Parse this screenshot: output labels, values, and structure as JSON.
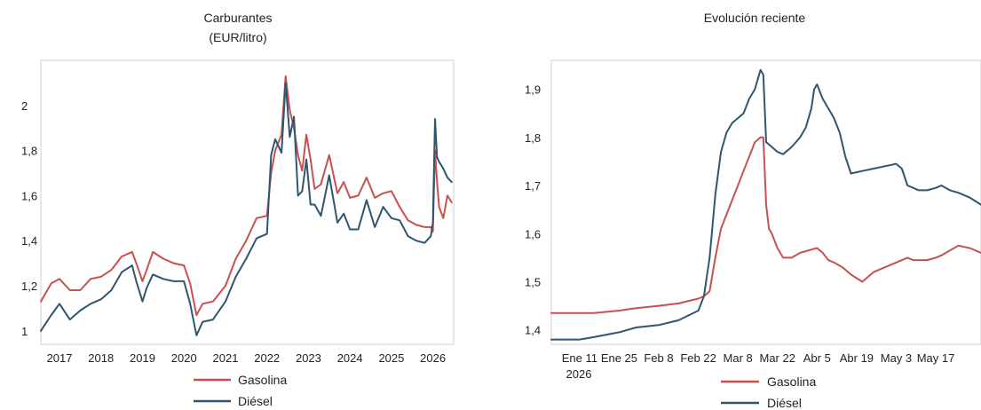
{
  "chart_data": [
    {
      "type": "line",
      "title": "Carburantes",
      "subtitle": "(EUR/litro)",
      "xlabel": "",
      "ylabel": "",
      "x_ticks": [
        "2017",
        "2018",
        "2019",
        "2020",
        "2021",
        "2022",
        "2023",
        "2024",
        "2025",
        "2026"
      ],
      "y_ticks": [
        "1",
        "1,2",
        "1,4",
        "1,6",
        "1,8",
        "2"
      ],
      "xlim": [
        2016.55,
        2026.5
      ],
      "ylim": [
        0.94,
        2.2
      ],
      "grid": false,
      "legend": "bottom",
      "series": [
        {
          "name": "Gasolina",
          "color": "#c8504e",
          "x": [
            2016.55,
            2016.8,
            2017.0,
            2017.25,
            2017.5,
            2017.75,
            2018.0,
            2018.25,
            2018.5,
            2018.75,
            2018.85,
            2019.0,
            2019.1,
            2019.25,
            2019.5,
            2019.75,
            2020.0,
            2020.15,
            2020.3,
            2020.45,
            2020.7,
            2021.0,
            2021.25,
            2021.5,
            2021.75,
            2022.0,
            2022.1,
            2022.2,
            2022.35,
            2022.45,
            2022.55,
            2022.65,
            2022.75,
            2022.85,
            2022.95,
            2023.05,
            2023.15,
            2023.3,
            2023.5,
            2023.7,
            2023.85,
            2024.0,
            2024.2,
            2024.4,
            2024.6,
            2024.8,
            2025.0,
            2025.2,
            2025.4,
            2025.6,
            2025.8,
            2025.95,
            2026.0,
            2026.05,
            2026.1,
            2026.15,
            2026.25,
            2026.35,
            2026.45
          ],
          "values": [
            1.13,
            1.21,
            1.23,
            1.18,
            1.18,
            1.23,
            1.24,
            1.27,
            1.33,
            1.35,
            1.3,
            1.22,
            1.27,
            1.35,
            1.32,
            1.3,
            1.29,
            1.21,
            1.07,
            1.12,
            1.13,
            1.2,
            1.32,
            1.4,
            1.5,
            1.51,
            1.7,
            1.8,
            1.87,
            2.13,
            1.98,
            1.9,
            1.78,
            1.71,
            1.87,
            1.76,
            1.63,
            1.65,
            1.78,
            1.61,
            1.66,
            1.59,
            1.6,
            1.68,
            1.59,
            1.61,
            1.62,
            1.55,
            1.49,
            1.47,
            1.46,
            1.46,
            1.44,
            1.8,
            1.66,
            1.55,
            1.5,
            1.6,
            1.57
          ]
        },
        {
          "name": "Diésel",
          "color": "#2f5670",
          "x": [
            2016.55,
            2016.8,
            2017.0,
            2017.25,
            2017.5,
            2017.75,
            2018.0,
            2018.25,
            2018.5,
            2018.75,
            2018.85,
            2019.0,
            2019.1,
            2019.25,
            2019.5,
            2019.75,
            2020.0,
            2020.15,
            2020.3,
            2020.45,
            2020.7,
            2021.0,
            2021.25,
            2021.5,
            2021.75,
            2022.0,
            2022.1,
            2022.2,
            2022.35,
            2022.45,
            2022.55,
            2022.65,
            2022.75,
            2022.85,
            2022.95,
            2023.05,
            2023.15,
            2023.3,
            2023.5,
            2023.7,
            2023.85,
            2024.0,
            2024.2,
            2024.4,
            2024.6,
            2024.8,
            2025.0,
            2025.2,
            2025.4,
            2025.6,
            2025.8,
            2025.95,
            2026.0,
            2026.05,
            2026.1,
            2026.15,
            2026.25,
            2026.35,
            2026.45
          ],
          "values": [
            1.0,
            1.07,
            1.12,
            1.05,
            1.09,
            1.12,
            1.14,
            1.18,
            1.26,
            1.29,
            1.22,
            1.13,
            1.19,
            1.25,
            1.23,
            1.22,
            1.22,
            1.12,
            0.98,
            1.04,
            1.05,
            1.13,
            1.24,
            1.32,
            1.41,
            1.43,
            1.78,
            1.85,
            1.79,
            2.1,
            1.86,
            1.95,
            1.6,
            1.62,
            1.76,
            1.56,
            1.56,
            1.51,
            1.69,
            1.48,
            1.52,
            1.45,
            1.45,
            1.58,
            1.46,
            1.55,
            1.5,
            1.49,
            1.42,
            1.4,
            1.39,
            1.42,
            1.48,
            1.94,
            1.77,
            1.75,
            1.72,
            1.68,
            1.66
          ]
        }
      ]
    },
    {
      "type": "line",
      "title": "Evolución reciente",
      "xlabel": "",
      "ylabel": "",
      "x_ticks": [
        "Ene 11",
        "Ene 25",
        "Feb 8",
        "Feb 22",
        "Mar 8",
        "Mar 22",
        "Abr 5",
        "Abr 19",
        "May 3",
        "May 17"
      ],
      "x_tick_year": "2026",
      "y_ticks": [
        "1,4",
        "1,5",
        "1,6",
        "1,7",
        "1,8",
        "1,9"
      ],
      "xlim": [
        -10,
        142
      ],
      "ylim": [
        1.37,
        1.96
      ],
      "grid": false,
      "legend": "bottom",
      "series": [
        {
          "name": "Gasolina",
          "color": "#c8504e",
          "x": [
            -10,
            0,
            5,
            14,
            20,
            28,
            35,
            42,
            44,
            46,
            48,
            50,
            52,
            54,
            56,
            58,
            60,
            62,
            64,
            65,
            66,
            67,
            68,
            70,
            72,
            75,
            78,
            81,
            84,
            86,
            88,
            90,
            93,
            96,
            100,
            104,
            108,
            112,
            116,
            118,
            120,
            123,
            126,
            128,
            131,
            134,
            138,
            142
          ],
          "values": [
            1.435,
            1.435,
            1.435,
            1.44,
            1.445,
            1.45,
            1.455,
            1.465,
            1.47,
            1.48,
            1.55,
            1.61,
            1.64,
            1.67,
            1.7,
            1.73,
            1.76,
            1.79,
            1.8,
            1.8,
            1.66,
            1.61,
            1.6,
            1.57,
            1.55,
            1.55,
            1.56,
            1.565,
            1.57,
            1.56,
            1.545,
            1.54,
            1.53,
            1.515,
            1.5,
            1.52,
            1.53,
            1.54,
            1.55,
            1.545,
            1.545,
            1.545,
            1.55,
            1.555,
            1.565,
            1.575,
            1.57,
            1.56
          ]
        },
        {
          "name": "Diésel",
          "color": "#2f5670",
          "x": [
            -10,
            -5,
            0,
            5,
            14,
            20,
            28,
            35,
            42,
            44,
            46,
            48,
            50,
            52,
            54,
            56,
            58,
            60,
            62,
            64,
            65,
            66,
            68,
            70,
            72,
            75,
            78,
            80,
            82,
            83,
            84,
            86,
            88,
            90,
            92,
            94,
            96,
            100,
            104,
            108,
            112,
            114,
            116,
            118,
            120,
            123,
            126,
            128,
            131,
            134,
            138,
            142
          ],
          "values": [
            1.38,
            1.38,
            1.38,
            1.385,
            1.395,
            1.405,
            1.41,
            1.42,
            1.44,
            1.47,
            1.55,
            1.68,
            1.77,
            1.81,
            1.83,
            1.84,
            1.85,
            1.88,
            1.9,
            1.94,
            1.93,
            1.79,
            1.78,
            1.77,
            1.765,
            1.78,
            1.8,
            1.82,
            1.86,
            1.9,
            1.91,
            1.88,
            1.86,
            1.84,
            1.81,
            1.76,
            1.725,
            1.73,
            1.735,
            1.74,
            1.745,
            1.735,
            1.7,
            1.695,
            1.69,
            1.69,
            1.695,
            1.7,
            1.69,
            1.685,
            1.675,
            1.66
          ]
        }
      ]
    }
  ]
}
